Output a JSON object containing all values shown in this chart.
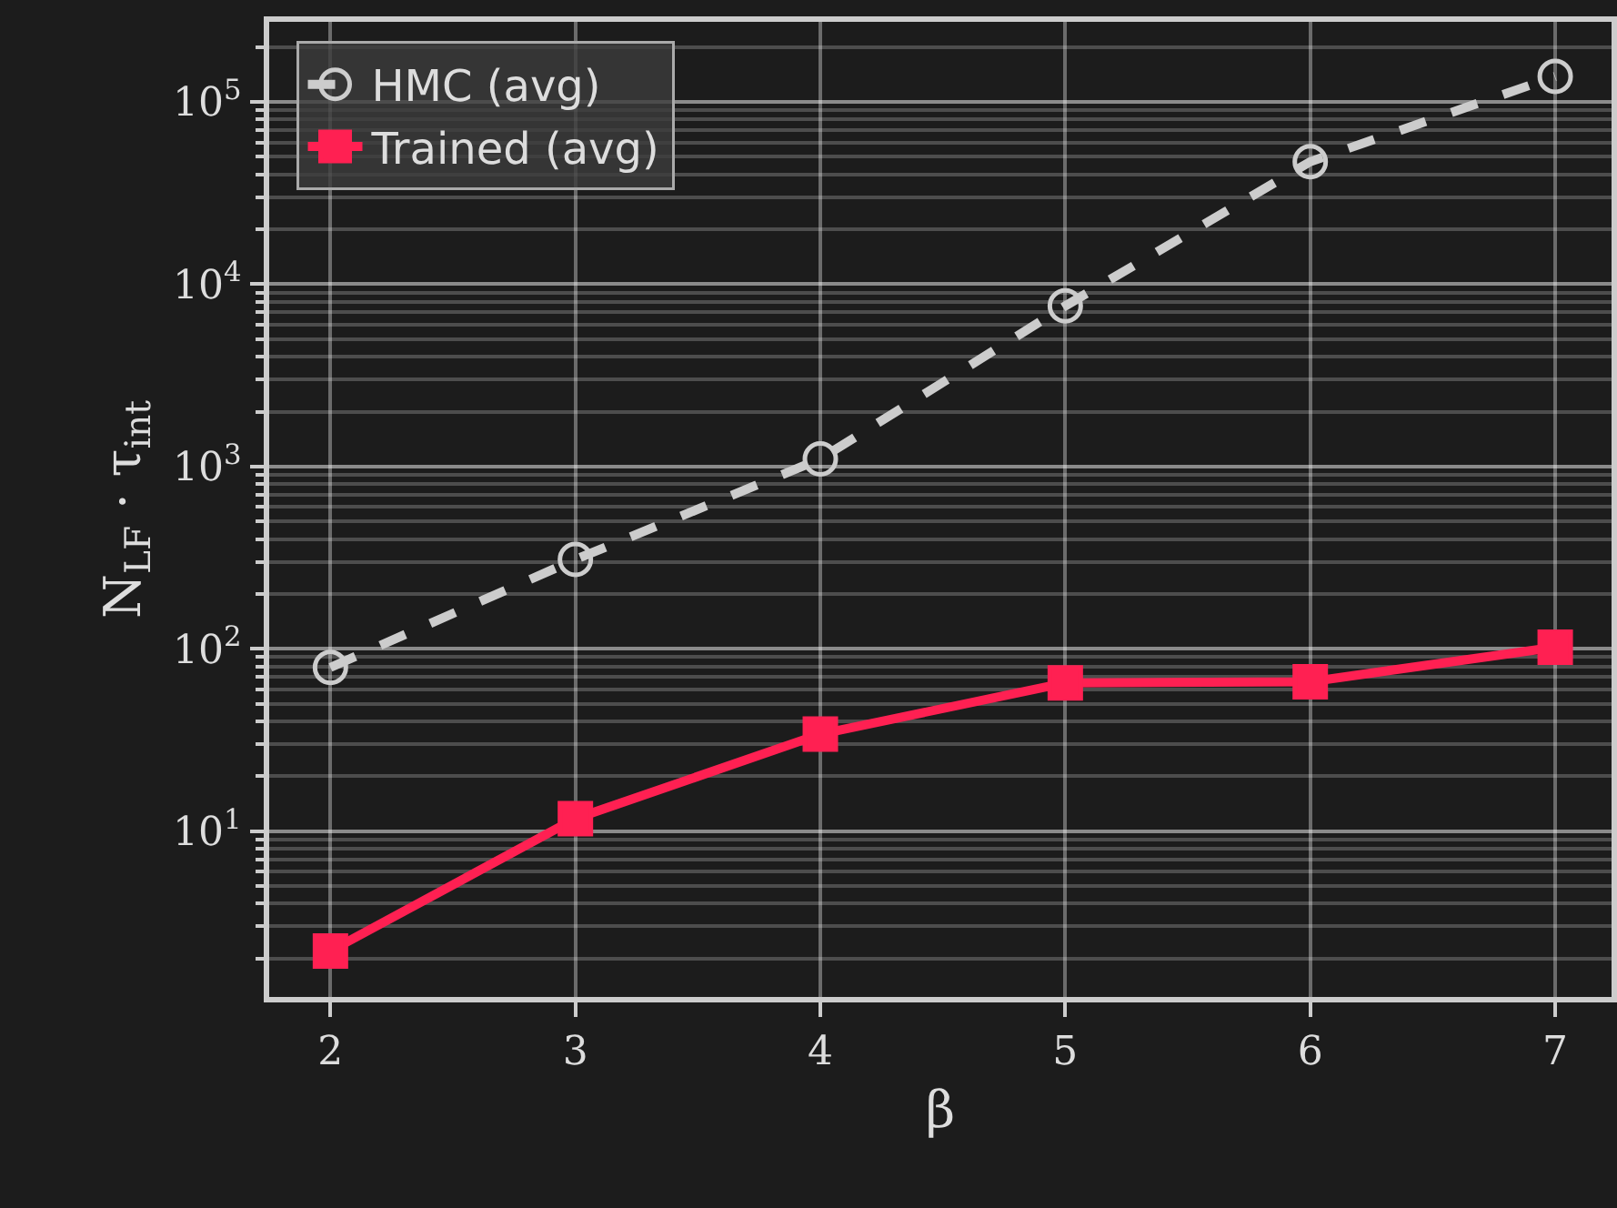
{
  "chart_data": {
    "type": "line",
    "xlabel": "β",
    "ylabel": "N$_{LF}$ · τ$_{int}$",
    "x": [
      2,
      3,
      4,
      5,
      6,
      7
    ],
    "series": [
      {
        "name": "HMC (avg)",
        "color": "#cccccc",
        "values": [
          79,
          309,
          1100,
          7600,
          47000,
          138000
        ],
        "marker": "circle-open",
        "line_style": "dashed"
      },
      {
        "name": "Trained (avg)",
        "color": "#ff2052",
        "values": [
          2.2,
          11.7,
          34,
          65,
          66,
          102
        ],
        "marker": "square",
        "line_style": "solid"
      }
    ],
    "log": "y",
    "xlim": [
      1.75,
      7.23
    ],
    "ylim": [
      1.23,
      275000
    ],
    "xticks": [
      2,
      3,
      4,
      5,
      6,
      7
    ],
    "yticks": [
      {
        "value": 10,
        "label": "10$^{1}$"
      },
      {
        "value": 100,
        "label": "10$^{2}$"
      },
      {
        "value": 1000,
        "label": "10$^{3}$"
      },
      {
        "value": 10000,
        "label": "10$^{4}$"
      },
      {
        "value": 100000,
        "label": "10$^{5}$"
      }
    ],
    "grid": true,
    "legend": "top left"
  }
}
